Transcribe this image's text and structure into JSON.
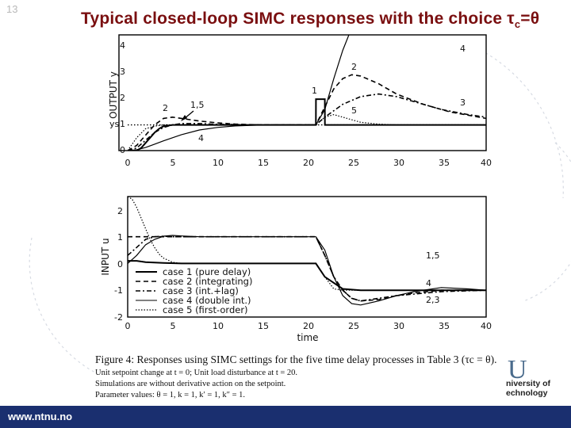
{
  "slide": {
    "number": "13"
  },
  "title": {
    "prefix": "Typical closed-loop SIMC responses with the choice ",
    "tau": "τ",
    "sub": "c",
    "suffix": "=θ"
  },
  "chart_data": [
    {
      "type": "line",
      "ylabel": "OUTPUT y",
      "xlim": [
        0,
        40
      ],
      "ylim": [
        0,
        4.5
      ],
      "xticks": [
        0,
        5,
        10,
        15,
        20,
        25,
        30,
        35,
        40
      ],
      "yticks": [
        0,
        1,
        2,
        3,
        4
      ],
      "ys_label": "ys",
      "setpoint": 1,
      "annotations": [
        "2",
        "1,5",
        "4",
        "1",
        "2",
        "5",
        "3",
        "4"
      ],
      "series": [
        {
          "style": "solid",
          "x": [
            0,
            1,
            1.5,
            2,
            2.5,
            3,
            3.5,
            4,
            5,
            6,
            8,
            10,
            15,
            20,
            21,
            21.01,
            22,
            22.01,
            25,
            30,
            40
          ],
          "y": [
            0,
            0,
            0.1,
            0.3,
            0.5,
            0.7,
            0.85,
            0.95,
            1,
            1,
            1,
            1,
            1,
            1,
            1,
            2,
            2,
            1,
            1,
            1,
            1
          ]
        },
        {
          "style": "dashed",
          "x": [
            0,
            1,
            2,
            3,
            4,
            5,
            6,
            8,
            10,
            12,
            15,
            20,
            21,
            22,
            23,
            24,
            25,
            26,
            28,
            30,
            33,
            36,
            40
          ],
          "y": [
            0,
            0.2,
            0.6,
            1.0,
            1.25,
            1.3,
            1.25,
            1.15,
            1.08,
            1.03,
            1.0,
            1.0,
            1.0,
            1.7,
            2.4,
            2.8,
            2.95,
            2.9,
            2.6,
            2.2,
            1.8,
            1.5,
            1.25
          ]
        },
        {
          "style": "dashdot",
          "x": [
            0,
            1,
            2,
            3,
            4,
            5,
            6,
            8,
            10,
            15,
            20,
            21,
            22,
            24,
            26,
            28,
            30,
            32,
            35,
            38,
            40
          ],
          "y": [
            0,
            0.1,
            0.4,
            0.7,
            0.9,
            1.0,
            1.05,
            1.05,
            1.02,
            1.0,
            1.0,
            1.0,
            1.3,
            1.8,
            2.1,
            2.2,
            2.1,
            1.9,
            1.6,
            1.4,
            1.3
          ]
        },
        {
          "style": "solid-thin",
          "x": [
            0,
            1,
            2,
            3,
            4,
            5,
            6,
            8,
            10,
            12,
            15,
            20,
            21,
            22,
            23,
            24,
            24.8
          ],
          "y": [
            0,
            0.03,
            0.12,
            0.25,
            0.38,
            0.5,
            0.62,
            0.8,
            0.9,
            0.96,
            1.0,
            1.0,
            1.0,
            1.6,
            2.8,
            3.9,
            4.6
          ]
        },
        {
          "style": "dotted",
          "x": [
            0,
            1,
            2,
            3,
            4,
            5,
            6,
            8,
            10,
            15,
            20,
            21,
            22,
            23,
            24,
            25,
            26,
            28,
            30,
            35,
            40
          ],
          "y": [
            0,
            0.5,
            0.85,
            0.95,
            1.0,
            1.0,
            1.0,
            1.0,
            1.0,
            1.0,
            1.0,
            1.0,
            1.3,
            1.4,
            1.3,
            1.2,
            1.1,
            1.03,
            1.0,
            1.0,
            1.0
          ]
        }
      ]
    },
    {
      "type": "line",
      "xlabel": "time",
      "ylabel": "INPUT u",
      "xlim": [
        0,
        40
      ],
      "ylim": [
        -2,
        2.5
      ],
      "xticks": [
        0,
        5,
        10,
        15,
        20,
        25,
        30,
        35,
        40
      ],
      "yticks": [
        -2,
        -1,
        0,
        1,
        2
      ],
      "annotations": [
        "1,5",
        "4",
        "2,3"
      ],
      "legend": [
        "case 1 (pure delay)",
        "case 2 (integrating)",
        "case 3 (int.+lag)",
        "case 4 (double int.)",
        "case 5 (first-order)"
      ],
      "series": [
        {
          "style": "solid",
          "x": [
            0,
            1,
            2,
            4,
            6,
            10,
            20,
            21,
            22,
            24,
            26,
            30,
            40
          ],
          "y": [
            0.1,
            0.1,
            0.05,
            0.02,
            0,
            0,
            0,
            0,
            -0.5,
            -0.95,
            -1.0,
            -1.0,
            -1.0
          ]
        },
        {
          "style": "dashed",
          "x": [
            0,
            1,
            2,
            3,
            4,
            5,
            8,
            10,
            15,
            20,
            21,
            22,
            23,
            24,
            25,
            26,
            28,
            30,
            32,
            35,
            38,
            40
          ],
          "y": [
            1,
            1,
            1,
            1,
            1,
            1,
            1,
            1,
            1,
            1,
            1,
            0.3,
            -0.5,
            -1.0,
            -1.3,
            -1.4,
            -1.35,
            -1.2,
            -1.1,
            -1.0,
            -1.0,
            -1.0
          ]
        },
        {
          "style": "dashdot",
          "x": [
            0,
            1,
            2,
            3,
            4,
            5,
            8,
            10,
            15,
            20,
            21,
            22,
            23,
            24,
            25,
            26,
            28,
            30,
            35,
            40
          ],
          "y": [
            0.3,
            0.6,
            0.9,
            1.0,
            1.02,
            1.0,
            1.0,
            1.0,
            1.0,
            1.0,
            1.0,
            0.3,
            -0.5,
            -1.0,
            -1.3,
            -1.4,
            -1.3,
            -1.2,
            -1.05,
            -1.0
          ]
        },
        {
          "style": "solid-thin",
          "x": [
            0,
            1,
            2,
            3,
            4,
            5,
            6,
            8,
            10,
            20,
            21,
            22,
            23,
            24,
            25,
            26,
            28,
            30,
            32,
            35,
            38,
            40
          ],
          "y": [
            0,
            0.3,
            0.7,
            0.9,
            1.02,
            1.05,
            1.03,
            1.0,
            1.0,
            1.0,
            1.0,
            0.5,
            -0.5,
            -1.2,
            -1.5,
            -1.55,
            -1.4,
            -1.2,
            -1.05,
            -0.9,
            -0.95,
            -1.0
          ]
        },
        {
          "style": "dotted",
          "x": [
            0,
            0.5,
            1,
            1.5,
            2,
            2.5,
            3,
            3.5,
            4,
            5,
            6,
            8,
            10,
            20,
            21,
            22,
            23,
            24,
            26,
            30,
            40
          ],
          "y": [
            2.5,
            2.4,
            2.1,
            1.7,
            1.3,
            0.9,
            0.6,
            0.35,
            0.2,
            0.05,
            0,
            0,
            0,
            0,
            0,
            -0.5,
            -0.95,
            -1.0,
            -1.0,
            -1.0,
            -1.0
          ]
        }
      ]
    }
  ],
  "caption": {
    "figure": "Figure 4: Responses using SIMC settings for the five time delay processes in Table 3 (τc = θ).",
    "line1": "Unit setpoint change at t = 0; Unit load disturbance at t = 20.",
    "line2": "Simulations are without derivative action on the setpoint.",
    "line3": "Parameter values: θ = 1, k = 1, k′ = 1, k″ = 1."
  },
  "logo": {
    "letter": "U",
    "line1": "niversity of",
    "line2": "echnology"
  },
  "footer": {
    "url": "www.ntnu.no",
    "color": "#1a2f6f"
  }
}
